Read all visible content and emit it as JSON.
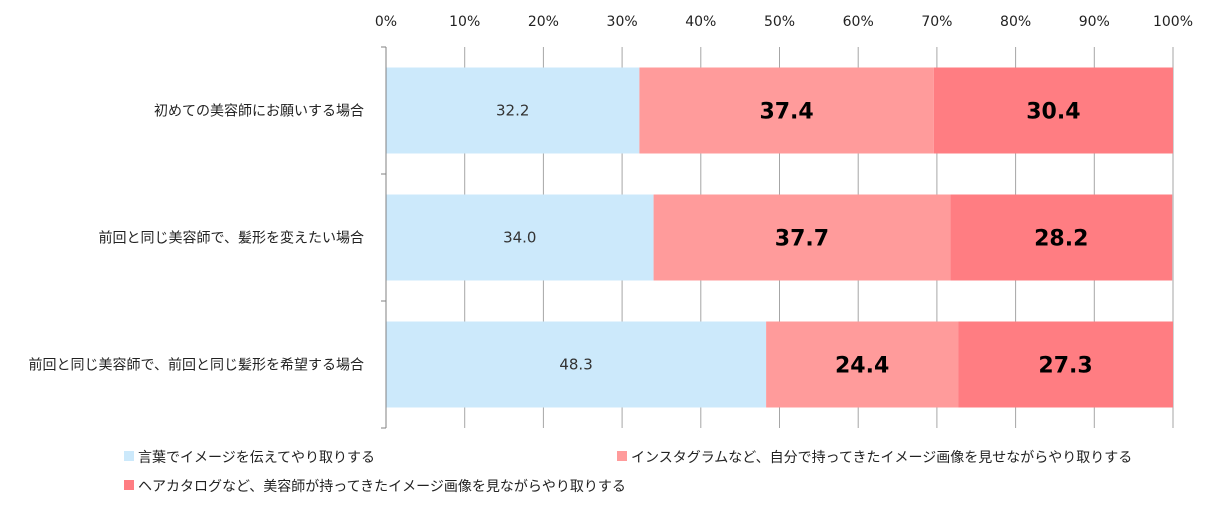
{
  "chart_data": {
    "type": "bar",
    "orientation": "horizontal",
    "stacked": true,
    "categories": [
      "初めての美容師にお願いする場合",
      "前回と同じ美容師で、髪形を変えたい場合",
      "前回と同じ美容師で、前回と同じ髪形を希望する場合"
    ],
    "series": [
      {
        "name": "言葉でイメージを伝えてやり取りする",
        "color": "#cce9fb",
        "values": [
          32.2,
          34.0,
          48.3
        ],
        "labels": [
          "32.2",
          "34.0",
          "48.3"
        ]
      },
      {
        "name": "インスタグラムなど、自分で持ってきたイメージ画像を見せながらやり取りする",
        "color": "#ff9b9b",
        "values": [
          37.4,
          37.7,
          24.4
        ],
        "labels": [
          "37.4",
          "37.7",
          "24.4"
        ]
      },
      {
        "name": "ヘアカタログなど、美容師が持ってきたイメージ画像を見ながらやり取りする",
        "color": "#ff7d82",
        "values": [
          30.4,
          28.2,
          27.3
        ],
        "labels": [
          "30.4",
          "28.2",
          "27.3"
        ]
      }
    ],
    "xlim": [
      0,
      100
    ],
    "x_ticks": [
      "0%",
      "10%",
      "20%",
      "30%",
      "40%",
      "50%",
      "60%",
      "70%",
      "80%",
      "90%",
      "100%"
    ],
    "grid": true,
    "legend_position": "bottom"
  }
}
